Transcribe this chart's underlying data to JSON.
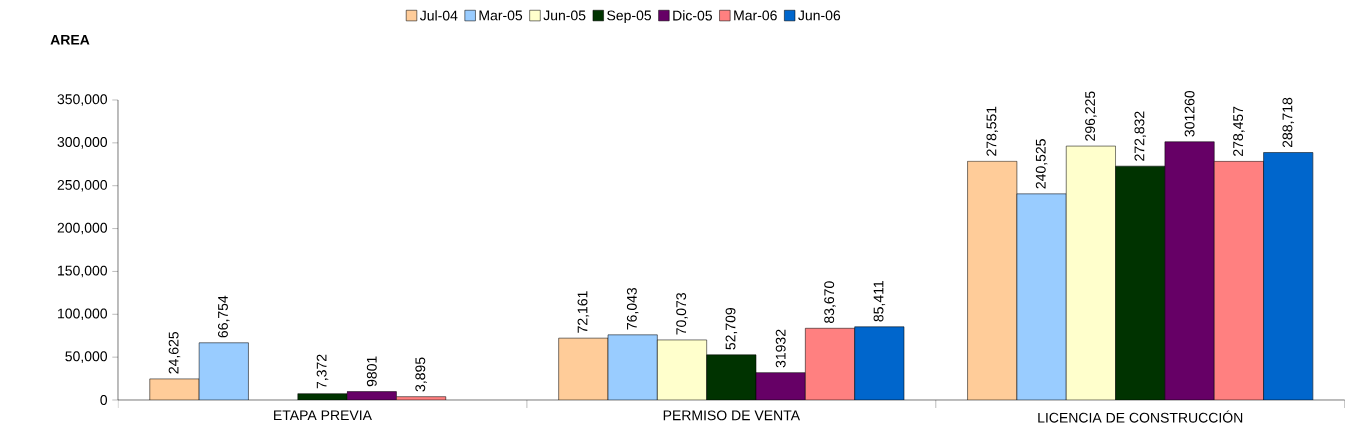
{
  "chart_data": {
    "type": "bar",
    "ylabel": "AREA",
    "categories": [
      "ETAPA PREVIA",
      "PERMISO DE VENTA",
      "LICENCIA DE CONSTRUCCIÓN"
    ],
    "ylim": [
      0,
      350000
    ],
    "yticks": [
      {
        "value": 0,
        "label": "0"
      },
      {
        "value": 50000,
        "label": "50,000"
      },
      {
        "value": 100000,
        "label": "100,000"
      },
      {
        "value": 150000,
        "label": "150,000"
      },
      {
        "value": 200000,
        "label": "200,000"
      },
      {
        "value": 250000,
        "label": "250,000"
      },
      {
        "value": 300000,
        "label": "300,000"
      },
      {
        "value": 350000,
        "label": "350,000"
      }
    ],
    "legend": "top",
    "series": [
      {
        "name": "Jul-04",
        "color": "#ffcc99",
        "values": [
          24625,
          72161,
          278551
        ],
        "value_labels": [
          "24,625",
          "72,161",
          "278,551"
        ]
      },
      {
        "name": "Mar-05",
        "color": "#99ccff",
        "values": [
          66754,
          76043,
          240525
        ],
        "value_labels": [
          "66,754",
          "76,043",
          "240,525"
        ]
      },
      {
        "name": "Jun-05",
        "color": "#ffffcc",
        "values": [
          null,
          70073,
          296225
        ],
        "value_labels": [
          null,
          "70,073",
          "296,225"
        ]
      },
      {
        "name": "Sep-05",
        "color": "#003300",
        "values": [
          7372,
          52709,
          272832
        ],
        "value_labels": [
          "7,372",
          "52,709",
          "272,832"
        ]
      },
      {
        "name": "Dic-05",
        "color": "#660066",
        "values": [
          9801,
          31932,
          301260
        ],
        "value_labels": [
          "9801",
          "31932",
          "301260"
        ]
      },
      {
        "name": "Mar-06",
        "color": "#ff8080",
        "values": [
          3895,
          83670,
          278457
        ],
        "value_labels": [
          "3,895",
          "83,670",
          "278,457"
        ]
      },
      {
        "name": "Jun-06",
        "color": "#0066cc",
        "values": [
          null,
          85411,
          288718
        ],
        "value_labels": [
          null,
          "85,411",
          "288,718"
        ]
      }
    ]
  }
}
